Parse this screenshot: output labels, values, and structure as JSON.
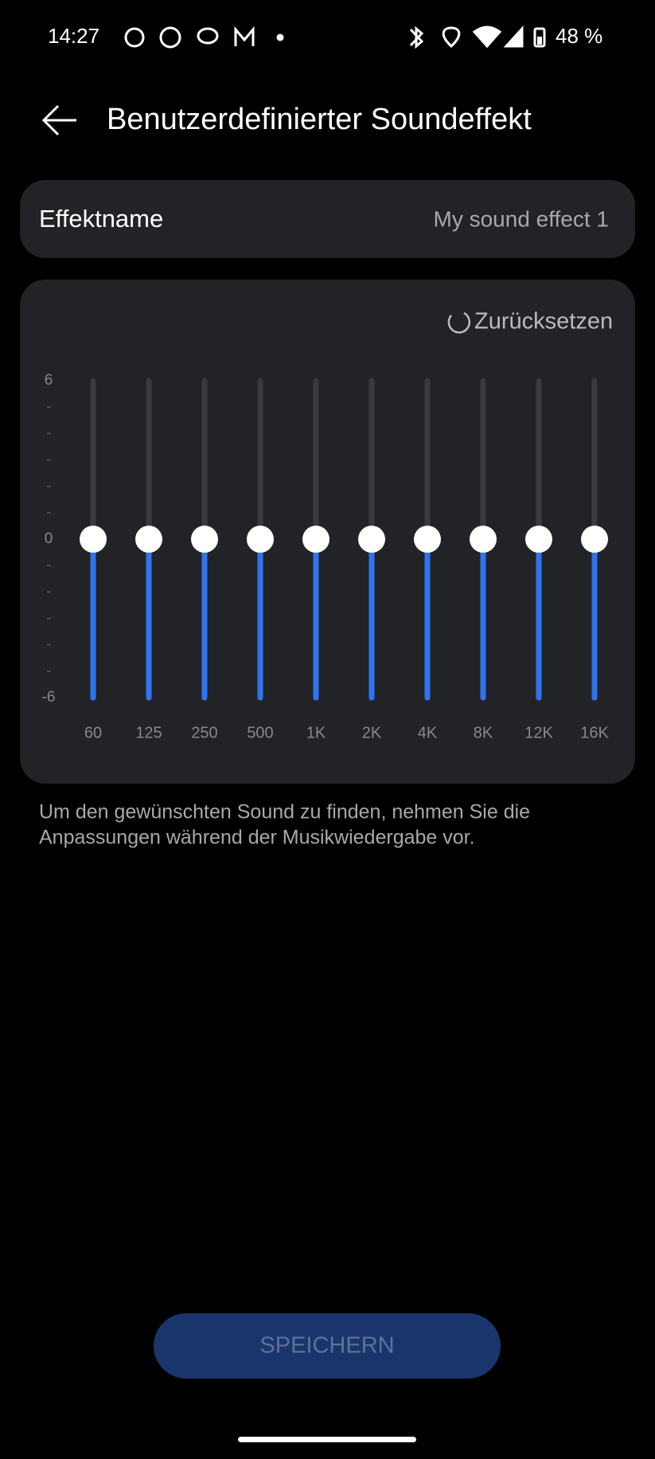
{
  "status_bar": {
    "time": "14:27",
    "battery": "48 %"
  },
  "header": {
    "title": "Benutzerdefinierter Soundeffekt"
  },
  "effect_name": {
    "label": "Effektname",
    "value": "My sound effect 1"
  },
  "equalizer": {
    "reset": "Zurücksetzen",
    "ylim": [
      -6,
      6
    ],
    "yticks": [
      6,
      0,
      -6
    ],
    "bands": [
      "60",
      "125",
      "250",
      "500",
      "1K",
      "2K",
      "4K",
      "8K",
      "12K",
      "16K"
    ],
    "values": [
      0,
      0,
      0,
      0,
      0,
      0,
      0,
      0,
      0,
      0
    ]
  },
  "hint": [
    "Um den gewünschten Sound zu finden, nehmen Sie die",
    "Anpassungen während der Musikwiedergabe vor."
  ],
  "button": "SPEICHERN"
}
